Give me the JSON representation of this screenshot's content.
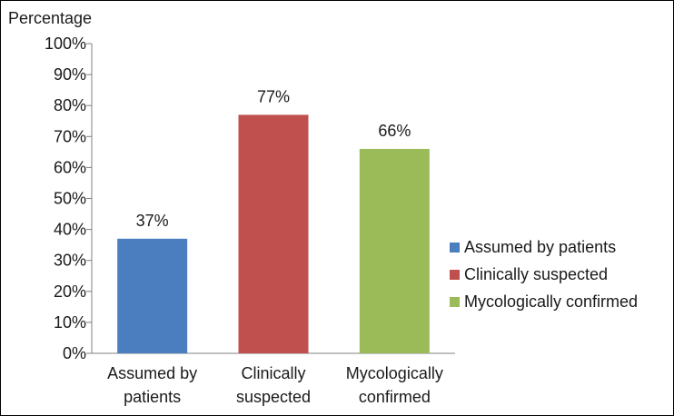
{
  "chart_data": {
    "type": "bar",
    "title": "",
    "ylabel": "Percentage",
    "xlabel": "",
    "ylim": [
      0,
      100
    ],
    "yticks": [
      "0%",
      "10%",
      "20%",
      "30%",
      "40%",
      "50%",
      "60%",
      "70%",
      "80%",
      "90%",
      "100%"
    ],
    "categories": [
      [
        "Assumed by",
        "patients"
      ],
      [
        "Clinically",
        "suspected"
      ],
      [
        "Mycologically",
        "confirmed"
      ]
    ],
    "values": [
      37,
      77,
      66
    ],
    "data_labels": [
      "37%",
      "77%",
      "66%"
    ],
    "colors": [
      "#4a7ebf",
      "#c0504d",
      "#9bbb59"
    ],
    "grid": false,
    "legend_position": "right",
    "legend": [
      {
        "label": "Assumed by patients",
        "color": "#4a7ebf"
      },
      {
        "label": "Clinically suspected",
        "color": "#c0504d"
      },
      {
        "label": "Mycologically confirmed",
        "color": "#9bbb59"
      }
    ]
  }
}
